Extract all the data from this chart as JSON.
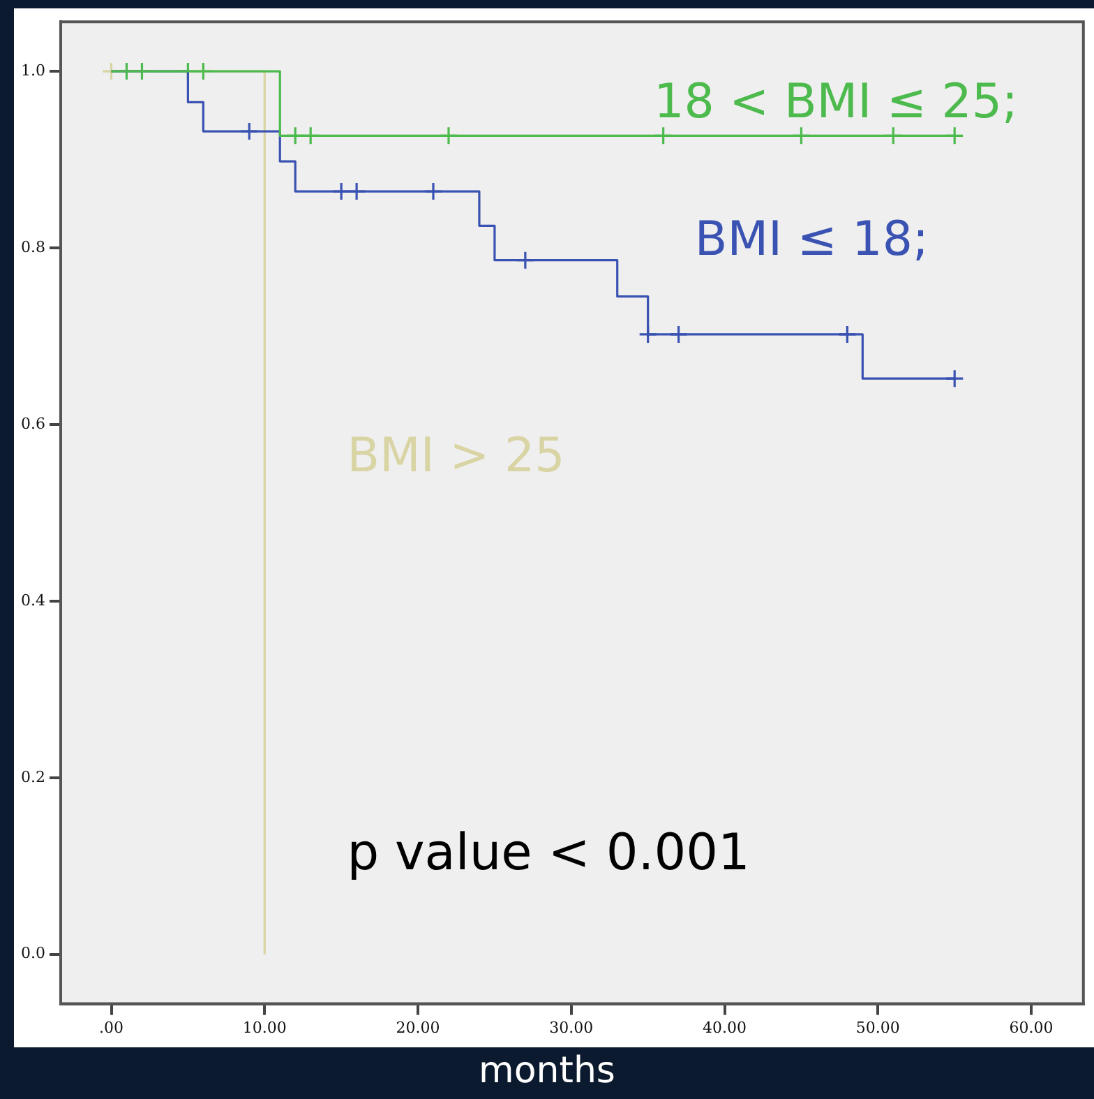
{
  "chart_data": {
    "type": "step",
    "xlabel": "months",
    "legend": false,
    "grid": false,
    "line_style": "solid",
    "xlim": [
      -3.3,
      63.4
    ],
    "ylim": [
      -0.056,
      1.056
    ],
    "xticks": [
      {
        "value": 0,
        "label": ".00"
      },
      {
        "value": 10,
        "label": "10.00"
      },
      {
        "value": 20,
        "label": "20.00"
      },
      {
        "value": 30,
        "label": "30.00"
      },
      {
        "value": 40,
        "label": "40.00"
      },
      {
        "value": 50,
        "label": "50.00"
      },
      {
        "value": 60,
        "label": "60.00"
      }
    ],
    "yticks": [
      {
        "value": 0,
        "label": "0.0"
      },
      {
        "value": 0.2,
        "label": "0.2"
      },
      {
        "value": 0.4,
        "label": "0.4"
      },
      {
        "value": 0.6,
        "label": "0.6"
      },
      {
        "value": 0.8,
        "label": "0.8"
      },
      {
        "value": 1,
        "label": "1.0"
      }
    ],
    "series": [
      {
        "name": "18 < BMI ≤ 25;",
        "color": "#4cba4c",
        "marker": "none",
        "x": [
          0,
          11,
          55
        ],
        "values": [
          1,
          0.927,
          0.927
        ]
      },
      {
        "name": "BMI ≤ 18;",
        "color": "#3a52b2",
        "marker": "none",
        "x": [
          0,
          5,
          6,
          11,
          12,
          24,
          25,
          33,
          35,
          49,
          55
        ],
        "values": [
          1,
          0.965,
          0.932,
          0.898,
          0.864,
          0.825,
          0.786,
          0.745,
          0.702,
          0.652,
          0.652
        ]
      },
      {
        "name": "BMI > 25",
        "color": "#d9d4a4",
        "marker": "none",
        "x": [
          0,
          10
        ],
        "values": [
          1,
          0
        ]
      },
      {
        "type": "scatter",
        "color": "#4cba4c",
        "marker": "cross",
        "x": [
          1,
          2,
          5,
          6,
          12,
          13,
          22,
          36,
          45,
          51,
          55
        ],
        "values": [
          1,
          1,
          1,
          1,
          0.927,
          0.927,
          0.927,
          0.927,
          0.927,
          0.927,
          0.927
        ]
      },
      {
        "type": "scatter",
        "color": "#3a52b2",
        "marker": "cross",
        "x": [
          9,
          15,
          16,
          21,
          27,
          35,
          37,
          48,
          55
        ],
        "values": [
          0.932,
          0.864,
          0.864,
          0.864,
          0.786,
          0.702,
          0.702,
          0.702,
          0.652
        ]
      },
      {
        "type": "scatter",
        "color": "#d9d4a4",
        "marker": "cross",
        "x": [
          0
        ],
        "values": [
          1
        ]
      }
    ],
    "annotations": [
      "p value < 0.001"
    ]
  }
}
